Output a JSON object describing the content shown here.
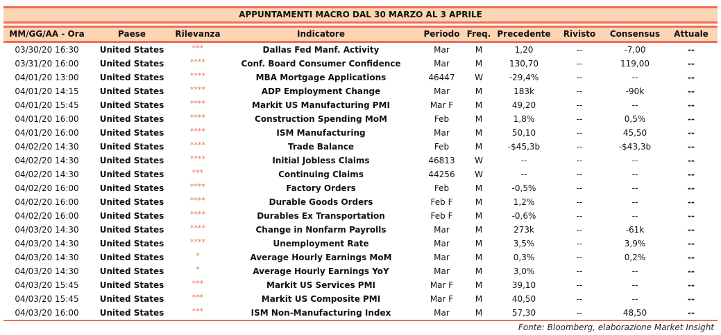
{
  "title": "APPUNTAMENTI MACRO DAL 30 MARZO AL 3 APRILE",
  "columns": [
    "MM/GG/AA - Ora",
    "Paese",
    "Rilevanza",
    "Indicatore",
    "Periodo",
    "Freq.",
    "Precedente",
    "Rivisto",
    "Consensus",
    "Attuale"
  ],
  "accent_color": "#f26b55",
  "band_color": "#fcd5b4",
  "rows": [
    [
      "03/30/20 16:30",
      "United States",
      "***",
      "Dallas Fed Manf. Activity",
      "Mar",
      "M",
      "1,20",
      "--",
      "-7,00",
      "--"
    ],
    [
      "03/31/20 16:00",
      "United States",
      "****",
      "Conf. Board Consumer Confidence",
      "Mar",
      "M",
      "130,70",
      "--",
      "119,00",
      "--"
    ],
    [
      "04/01/20 13:00",
      "United States",
      "****",
      "MBA Mortgage Applications",
      "46447",
      "W",
      "-29,4%",
      "--",
      "--",
      "--"
    ],
    [
      "04/01/20 14:15",
      "United States",
      "****",
      "ADP Employment Change",
      "Mar",
      "M",
      "183k",
      "--",
      "-90k",
      "--"
    ],
    [
      "04/01/20 15:45",
      "United States",
      "****",
      "Markit US Manufacturing PMI",
      "Mar F",
      "M",
      "49,20",
      "--",
      "--",
      "--"
    ],
    [
      "04/01/20 16:00",
      "United States",
      "****",
      "Construction Spending MoM",
      "Feb",
      "M",
      "1,8%",
      "--",
      "0,5%",
      "--"
    ],
    [
      "04/01/20 16:00",
      "United States",
      "****",
      "ISM Manufacturing",
      "Mar",
      "M",
      "50,10",
      "--",
      "45,50",
      "--"
    ],
    [
      "04/02/20 14:30",
      "United States",
      "****",
      "Trade Balance",
      "Feb",
      "M",
      "-$45,3b",
      "--",
      "-$43,3b",
      "--"
    ],
    [
      "04/02/20 14:30",
      "United States",
      "****",
      "Initial Jobless Claims",
      "46813",
      "W",
      "--",
      "--",
      "--",
      "--"
    ],
    [
      "04/02/20 14:30",
      "United States",
      "***",
      "Continuing Claims",
      "44256",
      "W",
      "--",
      "--",
      "--",
      "--"
    ],
    [
      "04/02/20 16:00",
      "United States",
      "****",
      "Factory Orders",
      "Feb",
      "M",
      "-0,5%",
      "--",
      "--",
      "--"
    ],
    [
      "04/02/20 16:00",
      "United States",
      "****",
      "Durable Goods Orders",
      "Feb F",
      "M",
      "1,2%",
      "--",
      "--",
      "--"
    ],
    [
      "04/02/20 16:00",
      "United States",
      "****",
      "Durables Ex Transportation",
      "Feb F",
      "M",
      "-0,6%",
      "--",
      "--",
      "--"
    ],
    [
      "04/03/20 14:30",
      "United States",
      "****",
      "Change in Nonfarm Payrolls",
      "Mar",
      "M",
      "273k",
      "--",
      "-61k",
      "--"
    ],
    [
      "04/03/20 14:30",
      "United States",
      "****",
      "Unemployment Rate",
      "Mar",
      "M",
      "3,5%",
      "--",
      "3,9%",
      "--"
    ],
    [
      "04/03/20 14:30",
      "United States",
      "*",
      "Average Hourly Earnings MoM",
      "Mar",
      "M",
      "0,3%",
      "--",
      "0,2%",
      "--"
    ],
    [
      "04/03/20 14:30",
      "United States",
      "*",
      "Average Hourly Earnings YoY",
      "Mar",
      "M",
      "3,0%",
      "--",
      "--",
      "--"
    ],
    [
      "04/03/20 15:45",
      "United States",
      "***",
      "Markit US Services PMI",
      "Mar F",
      "M",
      "39,10",
      "--",
      "--",
      "--"
    ],
    [
      "04/03/20 15:45",
      "United States",
      "***",
      "Markit US Composite PMI",
      "Mar F",
      "M",
      "40,50",
      "--",
      "--",
      "--"
    ],
    [
      "04/03/20 16:00",
      "United States",
      "***",
      "ISM Non-Manufacturing Index",
      "Mar",
      "M",
      "57,30",
      "--",
      "48,50",
      "--"
    ]
  ],
  "footer": "Fonte: Bloomberg, elaborazione Market Insight"
}
